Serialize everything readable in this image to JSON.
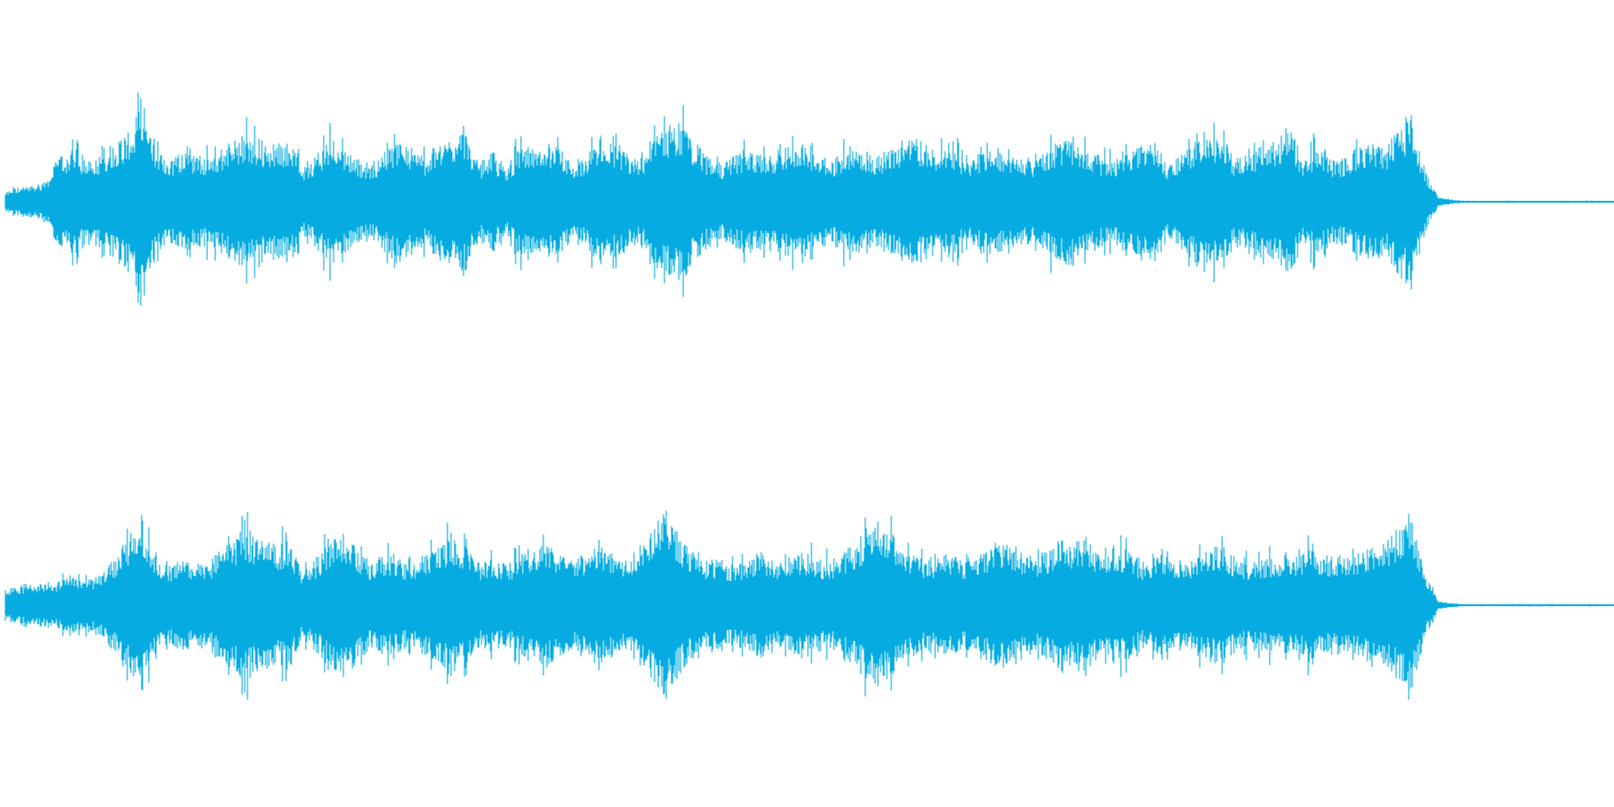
{
  "waveform": {
    "color": "#06ACE1",
    "background": "#FFFFFF",
    "channels": [
      {
        "name": "left",
        "envelope": [
          0.09,
          0.14,
          0.15,
          0.2,
          0.42,
          0.5,
          0.4,
          0.45,
          0.55,
          0.65,
          0.82,
          0.58,
          0.38,
          0.48,
          0.45,
          0.42,
          0.5,
          0.6,
          0.62,
          0.56,
          0.55,
          0.58,
          0.32,
          0.44,
          0.6,
          0.52,
          0.4,
          0.35,
          0.45,
          0.6,
          0.5,
          0.42,
          0.5,
          0.62,
          0.68,
          0.35,
          0.48,
          0.3,
          0.52,
          0.5,
          0.44,
          0.55,
          0.32,
          0.42,
          0.62,
          0.52,
          0.45,
          0.4,
          0.58,
          0.72,
          0.76,
          0.56,
          0.42,
          0.36,
          0.44,
          0.5,
          0.44,
          0.45,
          0.5,
          0.6,
          0.44,
          0.38,
          0.48,
          0.5,
          0.44,
          0.46,
          0.55,
          0.6,
          0.56,
          0.44,
          0.55,
          0.4,
          0.46,
          0.52,
          0.44,
          0.42,
          0.4,
          0.5,
          0.58,
          0.6,
          0.52,
          0.42,
          0.4,
          0.5,
          0.56,
          0.58,
          0.35,
          0.44,
          0.58,
          0.66,
          0.6,
          0.4,
          0.46,
          0.52,
          0.58,
          0.7,
          0.4,
          0.52,
          0.4,
          0.4,
          0.5,
          0.56,
          0.48,
          0.66,
          0.8,
          0.3,
          0.04,
          0.02,
          0.01,
          0.01,
          0.01,
          0.01,
          0.01,
          0.01,
          0.01,
          0.01,
          0.01,
          0.01,
          0.01,
          0.01
        ],
        "amplitude_max": 1.0
      },
      {
        "name": "right",
        "envelope": [
          0.15,
          0.18,
          0.2,
          0.22,
          0.22,
          0.26,
          0.24,
          0.28,
          0.42,
          0.62,
          0.86,
          0.52,
          0.36,
          0.44,
          0.38,
          0.4,
          0.52,
          0.65,
          0.7,
          0.6,
          0.56,
          0.62,
          0.32,
          0.42,
          0.6,
          0.72,
          0.55,
          0.4,
          0.48,
          0.44,
          0.38,
          0.5,
          0.56,
          0.66,
          0.58,
          0.4,
          0.44,
          0.38,
          0.46,
          0.56,
          0.6,
          0.5,
          0.42,
          0.5,
          0.56,
          0.5,
          0.42,
          0.62,
          0.78,
          0.88,
          0.62,
          0.48,
          0.4,
          0.42,
          0.38,
          0.44,
          0.5,
          0.42,
          0.44,
          0.48,
          0.44,
          0.4,
          0.5,
          0.6,
          0.72,
          0.76,
          0.62,
          0.5,
          0.44,
          0.44,
          0.5,
          0.42,
          0.46,
          0.56,
          0.62,
          0.52,
          0.44,
          0.5,
          0.62,
          0.58,
          0.52,
          0.5,
          0.56,
          0.52,
          0.4,
          0.44,
          0.48,
          0.42,
          0.44,
          0.52,
          0.58,
          0.44,
          0.4,
          0.44,
          0.46,
          0.46,
          0.5,
          0.52,
          0.44,
          0.48,
          0.5,
          0.56,
          0.6,
          0.7,
          0.82,
          0.3,
          0.04,
          0.02,
          0.01,
          0.01,
          0.01,
          0.01,
          0.01,
          0.01,
          0.01,
          0.01,
          0.01,
          0.01,
          0.01,
          0.01
        ],
        "amplitude_max": 1.0
      }
    ]
  }
}
